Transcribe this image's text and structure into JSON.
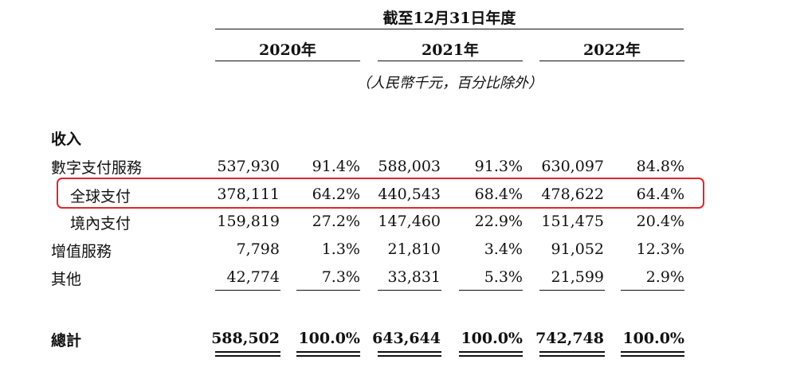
{
  "header": {
    "period_title": "截至12月31日年度",
    "years": [
      "2020年",
      "2021年",
      "2022年"
    ],
    "units_note": "（人民幣千元，百分比除外）"
  },
  "section": {
    "title": "收入"
  },
  "rows": [
    {
      "label": "數字支付服務",
      "values": [
        "537,930",
        "91.4%",
        "588,003",
        "91.3%",
        "630,097",
        "84.8%"
      ]
    },
    {
      "label": "全球支付",
      "values": [
        "378,111",
        "64.2%",
        "440,543",
        "68.4%",
        "478,622",
        "64.4%"
      ]
    },
    {
      "label": "境內支付",
      "values": [
        "159,819",
        "27.2%",
        "147,460",
        "22.9%",
        "151,475",
        "20.4%"
      ]
    },
    {
      "label": "增值服務",
      "values": [
        "7,798",
        "1.3%",
        "21,810",
        "3.4%",
        "91,052",
        "12.3%"
      ]
    },
    {
      "label": "其他",
      "values": [
        "42,774",
        "7.3%",
        "33,831",
        "5.3%",
        "21,599",
        "2.9%"
      ]
    }
  ],
  "total": {
    "label": "總計",
    "values": [
      "588,502",
      "100.0%",
      "643,644",
      "100.0%",
      "742,748",
      "100.0%"
    ]
  },
  "highlight_color": "#e0262f"
}
